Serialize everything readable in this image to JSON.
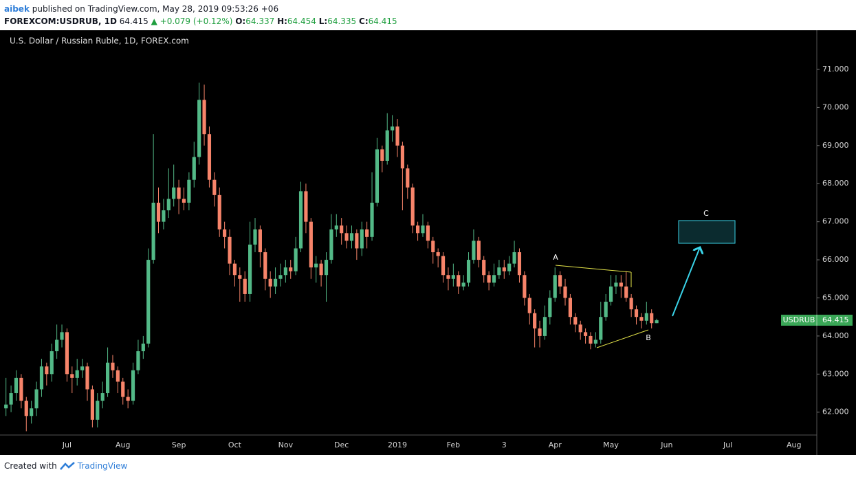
{
  "header": {
    "user": "aibek",
    "published": "published on TradingView.com, May 28, 2019 09:53:26 +06",
    "symbol": "FOREXCOM:USDRUB, 1D",
    "change": "+0.079 (+0.12%)",
    "o_label": "O:",
    "h_label": "H:",
    "l_label": "L:",
    "c_label": "C:"
  },
  "footer": {
    "created": "Created with",
    "brand": "TradingView"
  },
  "chart_data": {
    "type": "candlestick",
    "title": "U.S. Dollar / Russian Ruble, 1D, FOREX.com",
    "up_color": "#53b987",
    "down_color": "#f7846a",
    "tag_label": "USDRUB",
    "tag_color": "#3aa757",
    "annotations": [
      "A",
      "B",
      "C"
    ],
    "ylim": [
      61.4,
      72.01
    ],
    "yticks": [
      {
        "value": 62,
        "label": "62.000"
      },
      {
        "value": 63,
        "label": "63.000"
      },
      {
        "value": 64,
        "label": "64.000"
      },
      {
        "value": 65,
        "label": "65.000"
      },
      {
        "value": 66,
        "label": "66.000"
      },
      {
        "value": 67,
        "label": "67.000"
      },
      {
        "value": 68,
        "label": "68.000"
      },
      {
        "value": 69,
        "label": "69.000"
      },
      {
        "value": 70,
        "label": "70.000"
      },
      {
        "value": 71,
        "label": "71.000"
      }
    ],
    "categories": [
      null,
      null,
      null,
      null,
      null,
      null,
      null,
      null,
      null,
      null,
      null,
      null,
      "Jul",
      null,
      null,
      null,
      null,
      null,
      null,
      null,
      null,
      null,
      null,
      "Aug",
      null,
      null,
      null,
      null,
      null,
      null,
      null,
      null,
      null,
      null,
      "Sep",
      null,
      null,
      null,
      null,
      null,
      null,
      null,
      null,
      null,
      null,
      "Oct",
      null,
      null,
      null,
      null,
      null,
      null,
      null,
      null,
      null,
      "Nov",
      null,
      null,
      null,
      null,
      null,
      null,
      null,
      null,
      null,
      null,
      "Dec",
      null,
      null,
      null,
      null,
      null,
      null,
      null,
      null,
      null,
      null,
      "2019",
      null,
      null,
      null,
      null,
      null,
      null,
      null,
      null,
      null,
      null,
      "Feb",
      null,
      null,
      null,
      null,
      null,
      null,
      null,
      null,
      null,
      "3",
      null,
      null,
      null,
      null,
      null,
      null,
      null,
      null,
      null,
      "Apr",
      null,
      null,
      null,
      null,
      null,
      null,
      null,
      null,
      null,
      null,
      "May",
      null,
      null,
      null,
      null,
      null,
      null,
      null,
      null,
      null,
      null,
      "Jun",
      null,
      null,
      null,
      null,
      null,
      null,
      null,
      null,
      null,
      null,
      null,
      "Jul",
      null,
      null,
      null,
      null,
      null,
      null,
      null,
      null,
      null,
      null,
      null,
      null,
      "Aug",
      null,
      null,
      null,
      null
    ],
    "open": [
      62.1,
      62.2,
      62.5,
      62.9,
      62.3,
      61.9,
      62.1,
      62.6,
      63.2,
      63.0,
      63.6,
      63.9,
      64.1,
      63.0,
      62.9,
      63.1,
      63.2,
      62.6,
      61.8,
      62.3,
      62.5,
      63.3,
      63.1,
      62.8,
      62.4,
      62.3,
      63.1,
      63.6,
      63.8,
      66.0,
      67.5,
      67.0,
      67.3,
      67.6,
      67.9,
      67.6,
      67.5,
      68.1,
      68.7,
      70.2,
      69.3,
      68.1,
      67.7,
      66.8,
      66.6,
      65.9,
      65.6,
      65.5,
      65.1,
      66.4,
      66.8,
      66.2,
      65.5,
      65.3,
      65.5,
      65.6,
      65.8,
      65.7,
      66.3,
      67.8,
      67.0,
      65.8,
      65.9,
      65.6,
      66.0,
      66.8,
      66.9,
      66.7,
      66.5,
      66.7,
      66.3,
      66.8,
      66.6,
      67.5,
      68.9,
      68.6,
      69.4,
      69.5,
      69.0,
      68.4,
      67.9,
      66.9,
      66.7,
      66.9,
      66.5,
      66.2,
      66.1,
      65.6,
      65.5,
      65.6,
      65.3,
      65.4,
      66.0,
      66.5,
      66.0,
      65.6,
      65.4,
      65.6,
      65.8,
      65.7,
      65.9,
      66.2,
      65.6,
      65.0,
      64.6,
      64.2,
      64.0,
      64.5,
      65.0,
      65.6,
      65.3,
      65.0,
      64.5,
      64.3,
      64.1,
      64.0,
      63.8,
      63.9,
      64.5,
      64.9,
      65.3,
      65.4,
      65.3,
      65.0,
      64.7,
      64.5,
      64.4,
      64.6,
      64.337,
      null,
      null,
      null,
      null,
      null,
      null,
      null,
      null,
      null,
      null,
      null,
      null,
      null,
      null,
      null,
      null,
      null,
      null,
      null,
      null,
      null,
      null,
      null,
      null,
      null,
      null,
      null,
      null,
      null,
      null,
      null
    ],
    "high": [
      62.9,
      62.7,
      63.1,
      63.0,
      62.4,
      62.3,
      62.8,
      63.4,
      63.3,
      63.8,
      64.3,
      64.3,
      64.2,
      63.2,
      63.4,
      63.4,
      63.3,
      62.7,
      62.5,
      62.8,
      63.7,
      63.5,
      63.2,
      62.9,
      62.6,
      63.3,
      63.9,
      64.0,
      66.3,
      69.3,
      67.9,
      67.6,
      68.4,
      68.5,
      68.1,
      67.9,
      68.3,
      69.1,
      70.65,
      70.6,
      69.5,
      68.3,
      67.9,
      67.0,
      66.8,
      66.0,
      65.8,
      65.7,
      67.0,
      67.1,
      66.9,
      66.3,
      65.7,
      65.8,
      65.9,
      66.0,
      66.0,
      66.6,
      68.05,
      68.0,
      67.1,
      66.1,
      66.0,
      66.2,
      67.2,
      67.2,
      67.1,
      66.9,
      66.9,
      66.8,
      67.0,
      67.0,
      68.3,
      69.2,
      69.0,
      69.85,
      69.8,
      69.7,
      69.1,
      68.5,
      68.0,
      67.0,
      67.2,
      67.0,
      66.6,
      66.3,
      66.2,
      65.8,
      65.9,
      65.7,
      65.6,
      66.2,
      66.8,
      66.6,
      66.1,
      65.7,
      65.9,
      66.0,
      66.0,
      66.1,
      66.5,
      66.3,
      65.7,
      65.1,
      64.7,
      64.4,
      64.8,
      65.2,
      65.8,
      65.7,
      65.5,
      65.1,
      64.6,
      64.4,
      64.2,
      64.1,
      64.1,
      64.9,
      65.1,
      65.6,
      65.6,
      65.6,
      65.7,
      65.1,
      64.8,
      64.6,
      64.9,
      64.7,
      64.454,
      null,
      null,
      null,
      null,
      null,
      null,
      null,
      null,
      null,
      null,
      null,
      null,
      null,
      null,
      null,
      null,
      null,
      null,
      null,
      null,
      null,
      null,
      null,
      null,
      null,
      null,
      null,
      null,
      null,
      null,
      null
    ],
    "low": [
      61.9,
      62.0,
      62.3,
      62.1,
      61.5,
      61.7,
      61.9,
      62.4,
      62.7,
      62.8,
      63.4,
      63.7,
      62.8,
      62.5,
      62.7,
      62.9,
      62.3,
      61.6,
      61.6,
      62.1,
      62.4,
      62.9,
      62.5,
      62.2,
      62.1,
      62.2,
      63.0,
      63.4,
      63.7,
      65.9,
      66.7,
      66.8,
      67.1,
      67.4,
      67.2,
      67.3,
      67.3,
      67.9,
      68.5,
      69.0,
      67.9,
      67.4,
      66.6,
      66.3,
      65.6,
      65.3,
      64.9,
      64.9,
      64.9,
      66.2,
      65.8,
      65.2,
      65.0,
      65.1,
      65.3,
      65.4,
      65.5,
      65.6,
      66.2,
      66.7,
      65.5,
      65.4,
      65.3,
      64.9,
      65.9,
      66.6,
      66.4,
      66.3,
      66.3,
      66.0,
      66.1,
      66.3,
      66.5,
      67.4,
      68.3,
      68.5,
      69.1,
      68.7,
      67.3,
      67.6,
      66.7,
      66.5,
      66.6,
      66.3,
      65.9,
      65.8,
      65.4,
      65.2,
      65.3,
      65.1,
      65.2,
      65.3,
      65.9,
      65.8,
      65.4,
      65.2,
      65.3,
      65.5,
      65.5,
      65.6,
      65.8,
      65.4,
      64.8,
      64.3,
      63.7,
      63.7,
      63.9,
      64.3,
      64.9,
      65.1,
      64.8,
      64.3,
      64.1,
      63.9,
      63.8,
      63.65,
      63.7,
      63.8,
      64.4,
      64.8,
      65.1,
      65.0,
      64.9,
      64.5,
      64.3,
      64.2,
      64.3,
      64.2,
      64.335,
      null,
      null,
      null,
      null,
      null,
      null,
      null,
      null,
      null,
      null,
      null,
      null,
      null,
      null,
      null,
      null,
      null,
      null,
      null,
      null,
      null,
      null,
      null,
      null,
      null,
      null,
      null,
      null,
      null,
      null,
      null
    ],
    "close": [
      62.2,
      62.5,
      62.9,
      62.3,
      61.9,
      62.1,
      62.6,
      63.2,
      63.0,
      63.6,
      63.9,
      64.1,
      63.0,
      62.9,
      63.1,
      63.2,
      62.6,
      61.8,
      62.3,
      62.5,
      63.3,
      63.1,
      62.8,
      62.4,
      62.3,
      63.1,
      63.6,
      63.8,
      66.0,
      67.5,
      67.0,
      67.3,
      67.6,
      67.9,
      67.6,
      67.5,
      68.1,
      68.7,
      70.2,
      69.3,
      68.1,
      67.7,
      66.8,
      66.6,
      65.9,
      65.6,
      65.5,
      65.1,
      66.4,
      66.8,
      66.2,
      65.5,
      65.3,
      65.5,
      65.6,
      65.8,
      65.7,
      66.3,
      67.8,
      67.0,
      65.8,
      65.9,
      65.6,
      66.0,
      66.8,
      66.9,
      66.7,
      66.5,
      66.7,
      66.3,
      66.8,
      66.6,
      67.5,
      68.9,
      68.6,
      69.4,
      69.5,
      69.0,
      68.4,
      67.9,
      66.9,
      66.7,
      66.9,
      66.5,
      66.2,
      66.1,
      65.6,
      65.5,
      65.6,
      65.3,
      65.4,
      66.0,
      66.5,
      66.0,
      65.6,
      65.4,
      65.6,
      65.8,
      65.7,
      65.9,
      66.2,
      65.6,
      65.0,
      64.6,
      64.2,
      64.0,
      64.5,
      65.0,
      65.6,
      65.3,
      65.0,
      64.5,
      64.3,
      64.1,
      64.0,
      63.8,
      63.9,
      64.5,
      64.9,
      65.3,
      65.4,
      65.3,
      65.0,
      64.7,
      64.5,
      64.4,
      64.6,
      64.337,
      64.415,
      null,
      null,
      null,
      null,
      null,
      null,
      null,
      null,
      null,
      null,
      null,
      null,
      null,
      null,
      null,
      null,
      null,
      null,
      null,
      null,
      null,
      null,
      null,
      null,
      null,
      null,
      null,
      null,
      null,
      null,
      null
    ]
  }
}
